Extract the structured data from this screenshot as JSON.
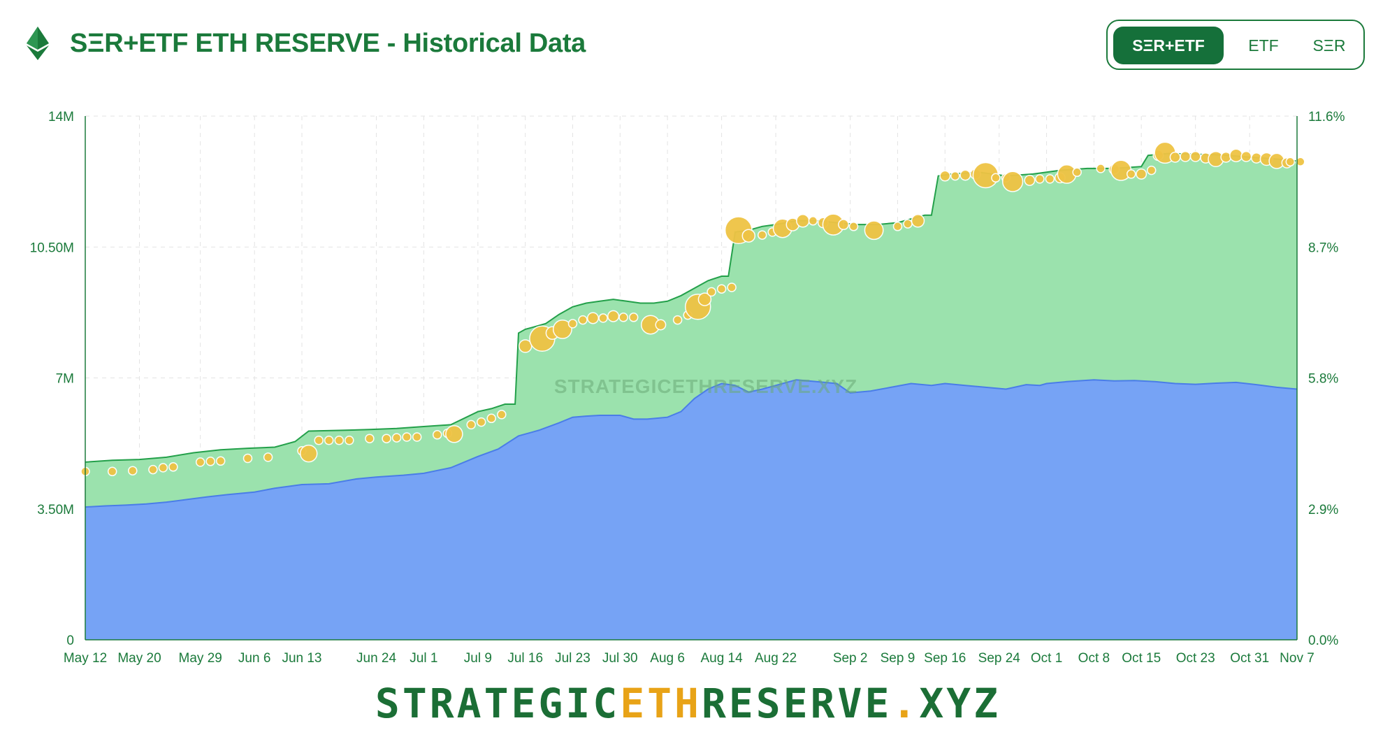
{
  "header": {
    "title": "SΞR+ETF ETH RESERVE - Historical Data",
    "icon": "ethereum-icon"
  },
  "toggle": {
    "options": [
      "SΞR+ETF",
      "ETF",
      "SΞR"
    ],
    "selected": "SΞR+ETF"
  },
  "colors": {
    "accent": "#1b7a3b",
    "etf_area": "#76a3f5",
    "etf_line": "#4a7de8",
    "total_area": "#9be2ad",
    "total_line": "#23a04a",
    "bubble": "#efc344"
  },
  "chart_data": {
    "type": "area",
    "watermark": "STRATEGICETHRESERVE.XYZ",
    "y_left": {
      "ticks": [
        "0",
        "3.50M",
        "7M",
        "10.50M",
        "14M"
      ],
      "ylim": [
        0,
        14000000
      ]
    },
    "y_right": {
      "ticks": [
        "0.0%",
        "2.9%",
        "5.8%",
        "8.7%",
        "11.6%"
      ],
      "ylim": [
        0,
        11.6
      ]
    },
    "x_ticks": [
      "May 12",
      "May 20",
      "May 29",
      "Jun 6",
      "Jun 13",
      "Jun 24",
      "Jul 1",
      "Jul 9",
      "Jul 16",
      "Jul 23",
      "Jul 30",
      "Aug 6",
      "Aug 14",
      "Aug 22",
      "Sep 2",
      "Sep 9",
      "Sep 16",
      "Sep 24",
      "Oct 1",
      "Oct 8",
      "Oct 15",
      "Oct 23",
      "Oct 31",
      "Nov 7"
    ],
    "x_tick_days": [
      0,
      8,
      17,
      25,
      32,
      43,
      50,
      58,
      65,
      72,
      79,
      86,
      94,
      102,
      113,
      120,
      127,
      135,
      142,
      149,
      156,
      164,
      172,
      179
    ],
    "x_range_days": [
      0,
      179
    ],
    "grid": true,
    "series": [
      {
        "name": "ETF",
        "x_days": [
          0,
          3,
          6,
          9,
          12,
          15,
          18,
          21,
          25,
          28,
          32,
          36,
          40,
          43,
          47,
          50,
          54,
          58,
          61,
          64,
          67,
          70,
          72,
          74,
          76,
          79,
          81,
          83,
          86,
          88,
          90,
          92,
          94,
          96,
          98,
          100,
          102,
          105,
          108,
          111,
          113,
          116,
          119,
          122,
          125,
          127,
          130,
          133,
          136,
          139,
          141,
          142,
          145,
          149,
          152,
          155,
          158,
          161,
          164,
          167,
          170,
          173,
          176,
          179
        ],
        "values": [
          3.55,
          3.58,
          3.6,
          3.63,
          3.68,
          3.75,
          3.82,
          3.88,
          3.95,
          4.05,
          4.15,
          4.17,
          4.3,
          4.35,
          4.4,
          4.45,
          4.6,
          4.9,
          5.1,
          5.45,
          5.6,
          5.8,
          5.95,
          5.98,
          6.0,
          6.0,
          5.9,
          5.9,
          5.95,
          6.1,
          6.45,
          6.7,
          6.85,
          6.8,
          6.62,
          6.7,
          6.8,
          6.95,
          6.9,
          6.85,
          6.6,
          6.65,
          6.75,
          6.85,
          6.8,
          6.85,
          6.8,
          6.75,
          6.7,
          6.82,
          6.8,
          6.85,
          6.9,
          6.95,
          6.92,
          6.93,
          6.9,
          6.85,
          6.83,
          6.86,
          6.88,
          6.82,
          6.75,
          6.7
        ]
      },
      {
        "name": "SΞR+ETF",
        "x_days": [
          0,
          4,
          8,
          12,
          16,
          20,
          24,
          28,
          31,
          33,
          38,
          42,
          46,
          50,
          54,
          58,
          60,
          62,
          63.5,
          64,
          65,
          66,
          68,
          70,
          72,
          74,
          76,
          78,
          80,
          82,
          84,
          86,
          88,
          90,
          92,
          94,
          95,
          96,
          98,
          100,
          102,
          105,
          108,
          111,
          114,
          117,
          120,
          122,
          124,
          125,
          126,
          128,
          132,
          136,
          140,
          144,
          148,
          152,
          156,
          157,
          160,
          164,
          168,
          172,
          176,
          179
        ],
        "values": [
          4.75,
          4.8,
          4.82,
          4.88,
          5.0,
          5.08,
          5.12,
          5.15,
          5.3,
          5.58,
          5.6,
          5.62,
          5.65,
          5.7,
          5.75,
          6.1,
          6.18,
          6.3,
          6.3,
          8.2,
          8.3,
          8.35,
          8.45,
          8.7,
          8.9,
          9.0,
          9.05,
          9.1,
          9.05,
          9.0,
          9.0,
          9.05,
          9.2,
          9.4,
          9.6,
          9.72,
          9.72,
          10.9,
          10.95,
          11.05,
          11.1,
          11.2,
          11.2,
          11.15,
          11.1,
          11.1,
          11.15,
          11.25,
          11.35,
          11.35,
          12.4,
          12.45,
          12.5,
          12.4,
          12.45,
          12.55,
          12.6,
          12.6,
          12.65,
          12.95,
          13.0,
          12.98,
          12.96,
          12.9,
          12.85,
          12.8
        ]
      }
    ],
    "bubbles": [
      {
        "d": 0,
        "v": 4.5,
        "s": 1
      },
      {
        "d": 4,
        "v": 4.5,
        "s": 1
      },
      {
        "d": 7,
        "v": 4.52,
        "s": 1
      },
      {
        "d": 10,
        "v": 4.55,
        "s": 1
      },
      {
        "d": 11.5,
        "v": 4.6,
        "s": 1
      },
      {
        "d": 13,
        "v": 4.62,
        "s": 1
      },
      {
        "d": 17,
        "v": 4.75,
        "s": 1
      },
      {
        "d": 18.5,
        "v": 4.77,
        "s": 1
      },
      {
        "d": 20,
        "v": 4.78,
        "s": 1
      },
      {
        "d": 24,
        "v": 4.85,
        "s": 1
      },
      {
        "d": 27,
        "v": 4.88,
        "s": 1
      },
      {
        "d": 32,
        "v": 5.05,
        "s": 1
      },
      {
        "d": 33,
        "v": 4.98,
        "s": 2
      },
      {
        "d": 34.5,
        "v": 5.33,
        "s": 1
      },
      {
        "d": 36,
        "v": 5.33,
        "s": 1
      },
      {
        "d": 37.5,
        "v": 5.33,
        "s": 1
      },
      {
        "d": 39,
        "v": 5.33,
        "s": 1
      },
      {
        "d": 42,
        "v": 5.38,
        "s": 1
      },
      {
        "d": 44.5,
        "v": 5.38,
        "s": 1
      },
      {
        "d": 46,
        "v": 5.4,
        "s": 1
      },
      {
        "d": 47.5,
        "v": 5.42,
        "s": 1
      },
      {
        "d": 49,
        "v": 5.42,
        "s": 1
      },
      {
        "d": 52,
        "v": 5.48,
        "s": 1
      },
      {
        "d": 53.5,
        "v": 5.52,
        "s": 1
      },
      {
        "d": 54.5,
        "v": 5.5,
        "s": 2
      },
      {
        "d": 57,
        "v": 5.75,
        "s": 1
      },
      {
        "d": 58.5,
        "v": 5.82,
        "s": 1
      },
      {
        "d": 60,
        "v": 5.92,
        "s": 1
      },
      {
        "d": 61.5,
        "v": 6.02,
        "s": 1
      },
      {
        "d": 65,
        "v": 7.85,
        "s": 1.5
      },
      {
        "d": 67.5,
        "v": 8.05,
        "s": 3
      },
      {
        "d": 69,
        "v": 8.2,
        "s": 1.5
      },
      {
        "d": 70.5,
        "v": 8.3,
        "s": 2.2
      },
      {
        "d": 72,
        "v": 8.45,
        "s": 1
      },
      {
        "d": 73.5,
        "v": 8.55,
        "s": 1
      },
      {
        "d": 75,
        "v": 8.6,
        "s": 1.3
      },
      {
        "d": 76.5,
        "v": 8.6,
        "s": 1
      },
      {
        "d": 78,
        "v": 8.65,
        "s": 1.3
      },
      {
        "d": 79.5,
        "v": 8.62,
        "s": 1
      },
      {
        "d": 81,
        "v": 8.62,
        "s": 1
      },
      {
        "d": 83.5,
        "v": 8.42,
        "s": 2.2
      },
      {
        "d": 85,
        "v": 8.42,
        "s": 1.2
      },
      {
        "d": 87.5,
        "v": 8.55,
        "s": 1
      },
      {
        "d": 89,
        "v": 8.68,
        "s": 1
      },
      {
        "d": 90.5,
        "v": 8.9,
        "s": 3
      },
      {
        "d": 91.5,
        "v": 9.1,
        "s": 1.5
      },
      {
        "d": 92.5,
        "v": 9.3,
        "s": 1
      },
      {
        "d": 94,
        "v": 9.38,
        "s": 1
      },
      {
        "d": 95.5,
        "v": 9.42,
        "s": 1
      },
      {
        "d": 96.5,
        "v": 10.95,
        "s": 3.2
      },
      {
        "d": 98,
        "v": 10.8,
        "s": 1.5
      },
      {
        "d": 100,
        "v": 10.82,
        "s": 1
      },
      {
        "d": 101.5,
        "v": 10.9,
        "s": 1
      },
      {
        "d": 103,
        "v": 11.0,
        "s": 2.2
      },
      {
        "d": 104.5,
        "v": 11.1,
        "s": 1.5
      },
      {
        "d": 106,
        "v": 11.2,
        "s": 1.5
      },
      {
        "d": 107.5,
        "v": 11.2,
        "s": 1
      },
      {
        "d": 109,
        "v": 11.15,
        "s": 1.2
      },
      {
        "d": 110.5,
        "v": 11.1,
        "s": 2.5
      },
      {
        "d": 112,
        "v": 11.1,
        "s": 1.2
      },
      {
        "d": 113.5,
        "v": 11.05,
        "s": 1
      },
      {
        "d": 116.5,
        "v": 10.95,
        "s": 2.2
      },
      {
        "d": 120,
        "v": 11.05,
        "s": 1
      },
      {
        "d": 121.5,
        "v": 11.12,
        "s": 1
      },
      {
        "d": 123,
        "v": 11.2,
        "s": 1.5
      },
      {
        "d": 127,
        "v": 12.4,
        "s": 1.2
      },
      {
        "d": 128.5,
        "v": 12.4,
        "s": 1
      },
      {
        "d": 130,
        "v": 12.42,
        "s": 1.2
      },
      {
        "d": 131.5,
        "v": 12.45,
        "s": 1.2
      },
      {
        "d": 133,
        "v": 12.42,
        "s": 3
      },
      {
        "d": 134.5,
        "v": 12.35,
        "s": 1
      },
      {
        "d": 136,
        "v": 12.35,
        "s": 1
      },
      {
        "d": 137,
        "v": 12.25,
        "s": 2.4
      },
      {
        "d": 139.5,
        "v": 12.28,
        "s": 1.2
      },
      {
        "d": 141,
        "v": 12.32,
        "s": 1
      },
      {
        "d": 142.5,
        "v": 12.32,
        "s": 1
      },
      {
        "d": 144,
        "v": 12.35,
        "s": 1.2
      },
      {
        "d": 145,
        "v": 12.45,
        "s": 2.2
      },
      {
        "d": 146.5,
        "v": 12.5,
        "s": 1
      },
      {
        "d": 150,
        "v": 12.6,
        "s": 1
      },
      {
        "d": 152,
        "v": 12.58,
        "s": 1.2
      },
      {
        "d": 153,
        "v": 12.55,
        "s": 2.4
      },
      {
        "d": 154.5,
        "v": 12.45,
        "s": 1
      },
      {
        "d": 156,
        "v": 12.45,
        "s": 1.2
      },
      {
        "d": 157.5,
        "v": 12.55,
        "s": 1
      },
      {
        "d": 158.5,
        "v": 12.95,
        "s": 1.2
      },
      {
        "d": 159.5,
        "v": 13.02,
        "s": 2.5
      },
      {
        "d": 161,
        "v": 12.9,
        "s": 1.2
      },
      {
        "d": 162.5,
        "v": 12.92,
        "s": 1.2
      },
      {
        "d": 164,
        "v": 12.92,
        "s": 1.2
      },
      {
        "d": 165.5,
        "v": 12.88,
        "s": 1.2
      },
      {
        "d": 167,
        "v": 12.85,
        "s": 1.8
      },
      {
        "d": 168.5,
        "v": 12.9,
        "s": 1.2
      },
      {
        "d": 170,
        "v": 12.95,
        "s": 1.5
      },
      {
        "d": 171.5,
        "v": 12.92,
        "s": 1.2
      },
      {
        "d": 173,
        "v": 12.88,
        "s": 1.2
      },
      {
        "d": 174.5,
        "v": 12.85,
        "s": 1.5
      },
      {
        "d": 176,
        "v": 12.8,
        "s": 1.8
      },
      {
        "d": 177.5,
        "v": 12.75,
        "s": 1.2
      },
      {
        "d": 178,
        "v": 12.78,
        "s": 1
      },
      {
        "d": 179.5,
        "v": 12.78,
        "s": 1
      }
    ]
  },
  "footer": {
    "part1": "STRATEGIC",
    "part2": "ETH",
    "part3": "RESERVE",
    "part4": ".",
    "part5": "XYZ"
  }
}
